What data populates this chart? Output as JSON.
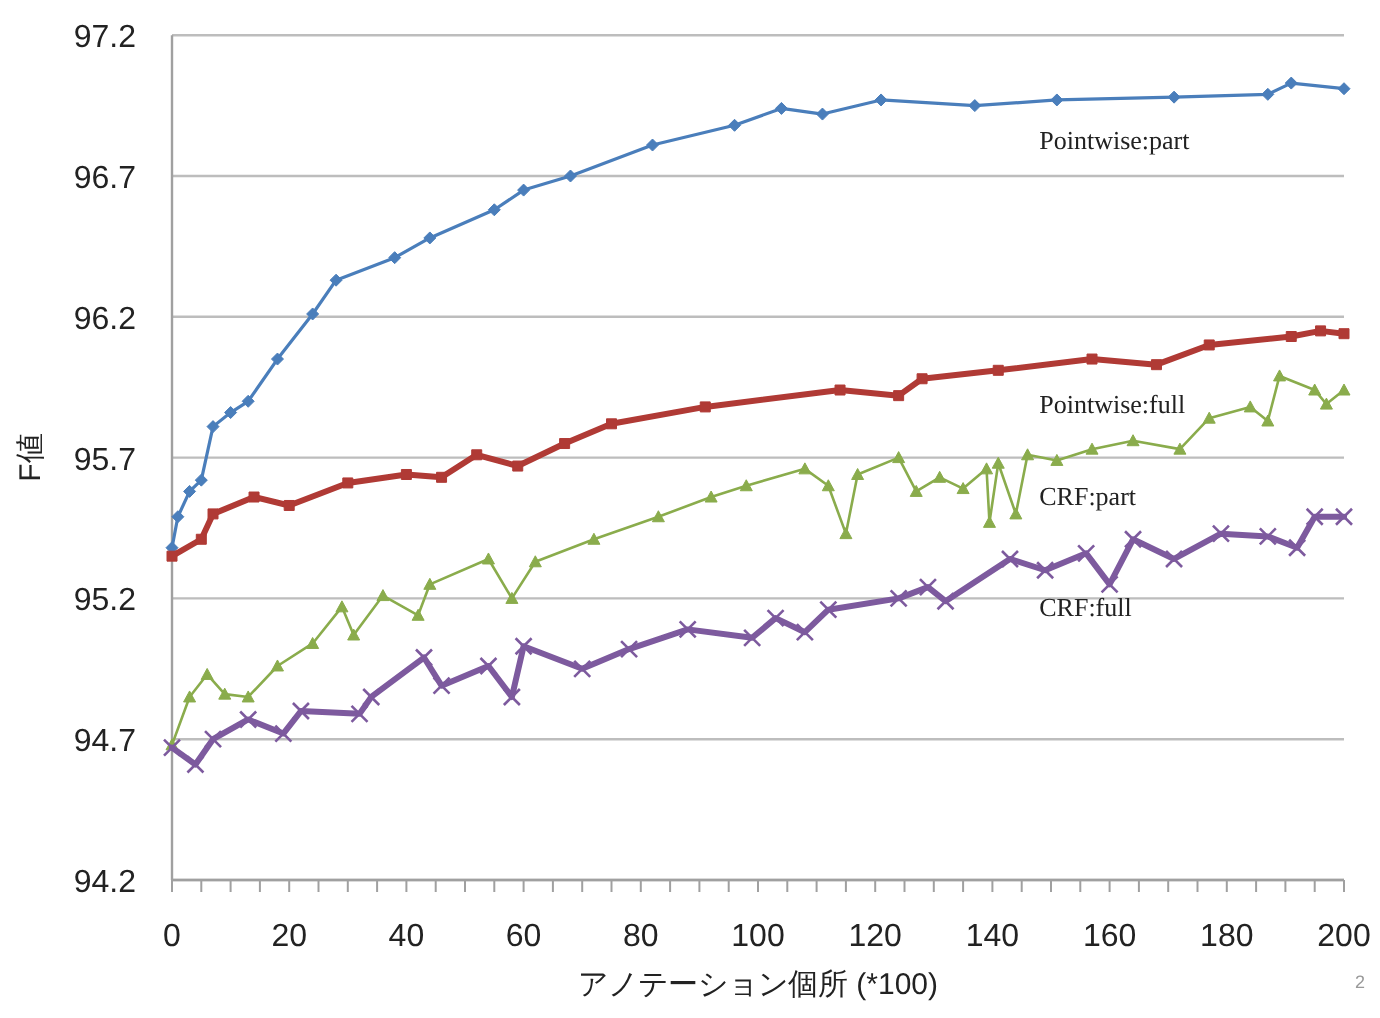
{
  "chart_data": {
    "type": "line",
    "xlabel": "アノテーション個所 (*100)",
    "ylabel": "F値",
    "annotations": [
      "2"
    ],
    "xlim": [
      0,
      200
    ],
    "ylim": [
      94.2,
      97.2
    ],
    "yticks": [
      94.2,
      94.7,
      95.2,
      95.7,
      96.2,
      96.7,
      97.2
    ],
    "xticks": [
      0,
      {
        "value": 5,
        "label": null
      },
      {
        "value": 10,
        "label": null
      },
      {
        "value": 15,
        "label": null
      },
      20,
      {
        "value": 25,
        "label": null
      },
      {
        "value": 30,
        "label": null
      },
      {
        "value": 35,
        "label": null
      },
      40,
      {
        "value": 45,
        "label": null
      },
      {
        "value": 50,
        "label": null
      },
      {
        "value": 55,
        "label": null
      },
      60,
      {
        "value": 65,
        "label": null
      },
      {
        "value": 70,
        "label": null
      },
      {
        "value": 75,
        "label": null
      },
      80,
      {
        "value": 85,
        "label": null
      },
      {
        "value": 90,
        "label": null
      },
      {
        "value": 95,
        "label": null
      },
      100,
      {
        "value": 105,
        "label": null
      },
      {
        "value": 110,
        "label": null
      },
      {
        "value": 115,
        "label": null
      },
      120,
      {
        "value": 125,
        "label": null
      },
      {
        "value": 130,
        "label": null
      },
      {
        "value": 135,
        "label": null
      },
      140,
      {
        "value": 145,
        "label": null
      },
      {
        "value": 150,
        "label": null
      },
      {
        "value": 155,
        "label": null
      },
      160,
      {
        "value": 165,
        "label": null
      },
      {
        "value": 170,
        "label": null
      },
      {
        "value": 175,
        "label": null
      },
      180,
      {
        "value": 185,
        "label": null
      },
      {
        "value": 190,
        "label": null
      },
      {
        "value": 195,
        "label": null
      },
      200
    ],
    "grid": "y",
    "series": [
      {
        "name": "Pointwise:part",
        "color": "#4a7ebb",
        "marker": "diamond",
        "x": [
          0,
          1,
          3,
          5,
          7,
          10,
          13,
          18,
          24,
          28,
          38,
          44,
          55,
          60,
          68,
          82,
          96,
          104,
          111,
          121,
          137,
          151,
          171,
          187,
          191,
          200
        ],
        "values": [
          95.38,
          95.49,
          95.58,
          95.62,
          95.81,
          95.86,
          95.9,
          96.05,
          96.21,
          96.33,
          96.41,
          96.48,
          96.58,
          96.65,
          96.7,
          96.81,
          96.88,
          96.94,
          96.92,
          96.97,
          96.95,
          96.97,
          96.98,
          96.99,
          97.03,
          97.01
        ]
      },
      {
        "name": "Pointwise:full",
        "color": "#b03a35",
        "marker": "square",
        "x": [
          0,
          5,
          7,
          14,
          20,
          30,
          40,
          46,
          52,
          59,
          67,
          75,
          91,
          114,
          124,
          128,
          141,
          157,
          168,
          177,
          191,
          196,
          200
        ],
        "values": [
          95.35,
          95.41,
          95.5,
          95.56,
          95.53,
          95.61,
          95.64,
          95.63,
          95.71,
          95.67,
          95.75,
          95.82,
          95.88,
          95.94,
          95.92,
          95.98,
          96.01,
          96.05,
          96.03,
          96.1,
          96.13,
          96.15,
          96.14
        ]
      },
      {
        "name": "CRF:part",
        "color": "#8aac4c",
        "marker": "triangle",
        "x": [
          0,
          3,
          6,
          9,
          13,
          18,
          24,
          29,
          31,
          36,
          42,
          44,
          54,
          58,
          62,
          72,
          83,
          92,
          98,
          108,
          112,
          115,
          117,
          124,
          127,
          131,
          135,
          139,
          139.5,
          141,
          144,
          146,
          151,
          157,
          164,
          172,
          177,
          184,
          187,
          189,
          195,
          197,
          200
        ],
        "values": [
          94.68,
          94.85,
          94.93,
          94.86,
          94.85,
          94.96,
          95.04,
          95.17,
          95.07,
          95.21,
          95.14,
          95.25,
          95.34,
          95.2,
          95.33,
          95.41,
          95.49,
          95.56,
          95.6,
          95.66,
          95.6,
          95.43,
          95.64,
          95.7,
          95.58,
          95.63,
          95.59,
          95.66,
          95.47,
          95.68,
          95.5,
          95.71,
          95.69,
          95.73,
          95.76,
          95.73,
          95.84,
          95.88,
          95.83,
          95.99,
          95.94,
          95.89,
          95.94
        ]
      },
      {
        "name": "CRF:full",
        "color": "#7d5a9e",
        "marker": "cross",
        "x": [
          0,
          4,
          7,
          13,
          19,
          22,
          32,
          34,
          43,
          46,
          54,
          58,
          60,
          70,
          78,
          88,
          99,
          103,
          108,
          112,
          124,
          129,
          132,
          143,
          149,
          156,
          160,
          164,
          171,
          179,
          187,
          192,
          195,
          200
        ],
        "values": [
          94.67,
          94.61,
          94.7,
          94.77,
          94.72,
          94.8,
          94.79,
          94.85,
          94.99,
          94.89,
          94.96,
          94.85,
          95.03,
          94.95,
          95.02,
          95.09,
          95.06,
          95.13,
          95.08,
          95.16,
          95.2,
          95.24,
          95.19,
          95.34,
          95.3,
          95.36,
          95.25,
          95.41,
          95.34,
          95.43,
          95.42,
          95.38,
          95.49,
          95.49
        ]
      }
    ]
  }
}
